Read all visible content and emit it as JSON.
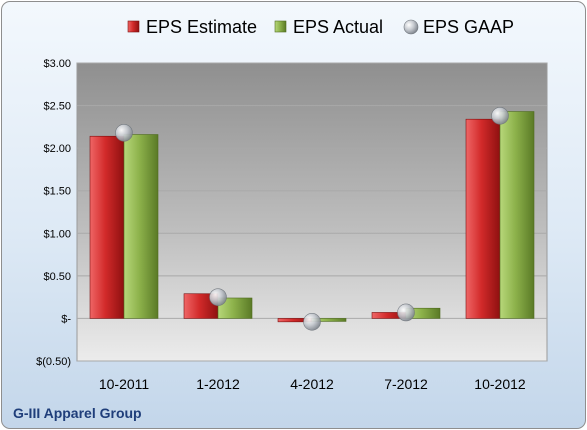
{
  "chart_data": {
    "type": "bar",
    "company": "G-III Apparel Group",
    "categories": [
      "10-2011",
      "1-2012",
      "4-2012",
      "7-2012",
      "10-2012"
    ],
    "series": [
      {
        "name": "EPS Estimate",
        "type": "bar",
        "color": "#d42a2a",
        "values": [
          2.14,
          0.29,
          -0.04,
          0.07,
          2.34
        ]
      },
      {
        "name": "EPS Actual",
        "type": "bar",
        "color": "#8fb54d",
        "values": [
          2.16,
          0.24,
          -0.03,
          0.12,
          2.43
        ]
      },
      {
        "name": "EPS GAAP",
        "type": "marker",
        "color": "#b4b9c0",
        "values": [
          2.18,
          0.25,
          -0.04,
          0.07,
          2.38
        ]
      }
    ],
    "y_ticks": [
      {
        "value": 3.0,
        "label": "$3.00"
      },
      {
        "value": 2.5,
        "label": "$2.50"
      },
      {
        "value": 2.0,
        "label": "$2.00"
      },
      {
        "value": 1.5,
        "label": "$1.50"
      },
      {
        "value": 1.0,
        "label": "$1.00"
      },
      {
        "value": 0.5,
        "label": "$0.50"
      },
      {
        "value": 0.0,
        "label": "$-"
      },
      {
        "value": -0.5,
        "label": "$(0.50)"
      }
    ],
    "ylim": [
      -0.5,
      3.0
    ],
    "grid": true,
    "legend_position": "top"
  }
}
